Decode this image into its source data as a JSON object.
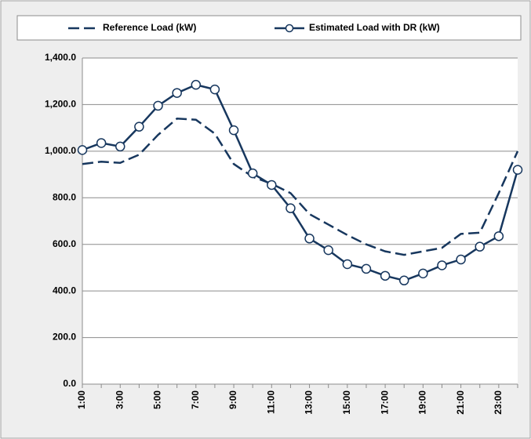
{
  "chart_data": {
    "type": "line",
    "categories": [
      "1:00",
      null,
      "3:00",
      null,
      "5:00",
      null,
      "7:00",
      null,
      "9:00",
      null,
      "11:00",
      null,
      "13:00",
      null,
      "15:00",
      null,
      "17:00",
      null,
      "19:00",
      null,
      "21:00",
      null,
      "23:00",
      null
    ],
    "series": [
      {
        "name": "Reference Load (kW)",
        "color": "#17375e",
        "dash": true,
        "marker": "none",
        "values": [
          945,
          955,
          950,
          985,
          1070,
          1140,
          1135,
          1075,
          945,
          890,
          860,
          820,
          730,
          685,
          640,
          600,
          570,
          555,
          570,
          585,
          645,
          650,
          820,
          1000
        ]
      },
      {
        "name": "Estimated Load with DR (kW)",
        "color": "#17375e",
        "dash": false,
        "marker": "circle",
        "values": [
          1005,
          1035,
          1020,
          1105,
          1195,
          1250,
          1285,
          1265,
          1090,
          905,
          855,
          755,
          625,
          575,
          515,
          495,
          465,
          445,
          475,
          510,
          535,
          590,
          635,
          920
        ]
      }
    ],
    "ylim": [
      0,
      1400
    ],
    "yticks": [
      {
        "value": 0,
        "label": "0.0"
      },
      {
        "value": 200,
        "label": "200.0"
      },
      {
        "value": 400,
        "label": "400.0"
      },
      {
        "value": 600,
        "label": "600.0"
      },
      {
        "value": 800,
        "label": "800.0"
      },
      {
        "value": 1000,
        "label": "1,000.0"
      },
      {
        "value": 1200,
        "label": "1,200.0"
      },
      {
        "value": 1400,
        "label": "1,400.0"
      }
    ],
    "grid": true,
    "legend": "top"
  }
}
